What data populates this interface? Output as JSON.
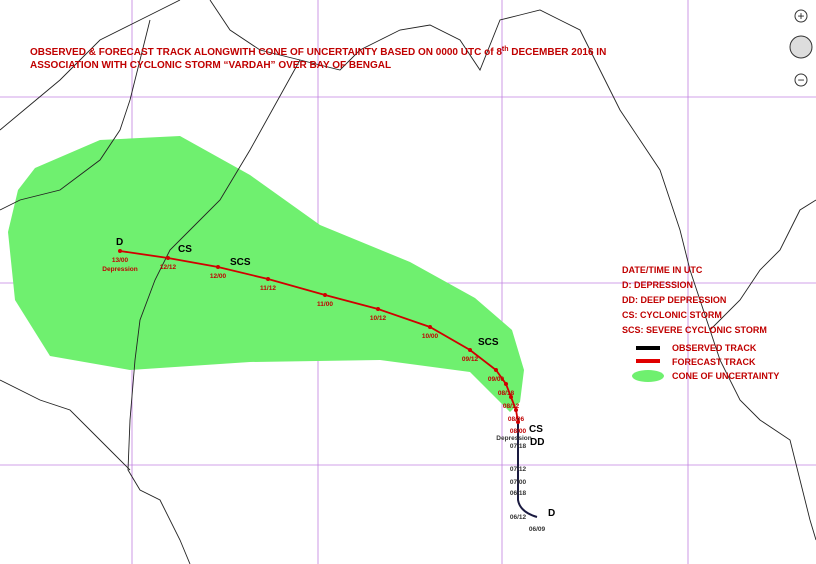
{
  "title": {
    "line1": "OBSERVED & FORECAST TRACK ALONGWITH CONE OF UNCERTAINTY BASED ON 0000 UTC of 8",
    "sup": "th",
    "line1_end": " DECEMBER 2016 IN",
    "line2": "ASSOCIATION WITH CYCLONIC STORM “VARDAH” OVER BAY OF BENGAL"
  },
  "legend": {
    "notes": [
      "DATE/TIME IN UTC",
      "D: DEPRESSION",
      "DD: DEEP DEPRESSION",
      "CS: CYCLONIC STORM",
      "SCS: SEVERE CYCLONIC STORM"
    ],
    "items": [
      "OBSERVED TRACK",
      "FORECAST TRACK",
      "CONE OF UNCERTAINTY"
    ]
  },
  "track": {
    "forecast_times": [
      "13/00",
      "12/12",
      "12/00",
      "11/12",
      "11/00",
      "10/12",
      "10/00",
      "09/12",
      "09/00",
      "08/18",
      "08/12",
      "08/06",
      "08/00"
    ],
    "observed_times": [
      "07/18",
      "07/12",
      "07/00",
      "06/18",
      "06/12",
      "06/09"
    ],
    "depression_labels": [
      "Depression",
      "Depression"
    ],
    "intensity": [
      "D",
      "CS",
      "SCS",
      "SCS",
      "CS",
      "DD",
      "D"
    ]
  },
  "controls": {
    "zoom_in": "+",
    "zoom_out": "−"
  }
}
